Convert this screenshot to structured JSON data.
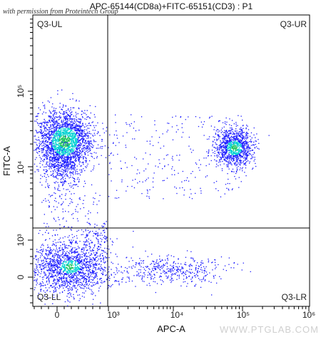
{
  "watermark": "with permission from Proteintech Group",
  "site_watermark": "WWW.PTGLAB.COM",
  "chart_data": {
    "type": "scatter",
    "title": "APC-65144(CD8a)+FITC-65151(CD3) : P1",
    "xlabel": "APC-A",
    "ylabel": "FITC-A",
    "x_scale": "biexponential",
    "y_scale": "biexponential",
    "x_ticks": [
      "0",
      "10³",
      "10⁴",
      "10⁵",
      "10⁶"
    ],
    "y_ticks": [
      "0",
      "10³",
      "10⁴",
      "10⁵"
    ],
    "quadrant_gate": {
      "x": 900,
      "y": 2000
    },
    "quadrants": [
      "Q3-UL",
      "Q3-UR",
      "Q3-LL",
      "Q3-LR"
    ],
    "populations": [
      {
        "quadrant": "Q3-UL",
        "description": "CD3+ CD8a-",
        "center": [
          200,
          20000
        ]
      },
      {
        "quadrant": "Q3-UR",
        "description": "CD3+ CD8a+",
        "center": [
          80000,
          18000
        ]
      },
      {
        "quadrant": "Q3-LL",
        "description": "CD3- CD8a-",
        "center": [
          150,
          0
        ]
      },
      {
        "quadrant": "Q3-LR",
        "description": "sparse events",
        "center": [
          10000,
          0
        ]
      }
    ],
    "colors": {
      "low_density": "#1a1aff",
      "mid_density": "#00d2d2",
      "high_density": "#22c55e"
    },
    "grid": false,
    "legend": "none"
  }
}
